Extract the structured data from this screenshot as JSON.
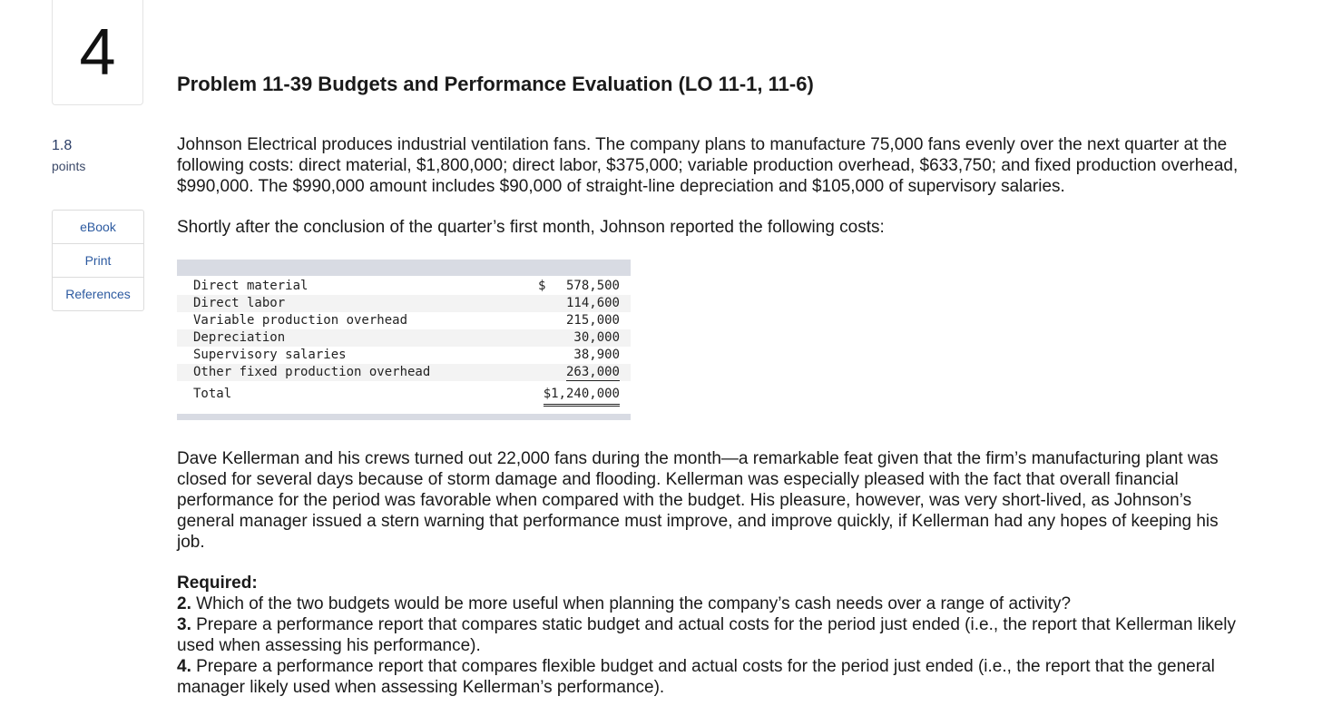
{
  "question": {
    "number": "4",
    "points_value": "1.8",
    "points_label": "points"
  },
  "sidebar": {
    "links": [
      "eBook",
      "Print",
      "References"
    ]
  },
  "problem": {
    "title": "Problem 11-39 Budgets and Performance Evaluation (LO 11-1, 11-6)",
    "para1": "Johnson Electrical produces industrial ventilation fans. The company plans to manufacture 75,000 fans evenly over the next quarter at the following costs: direct material, $1,800,000; direct labor, $375,000; variable production overhead, $633,750; and fixed production overhead, $990,000. The $990,000 amount includes $90,000 of straight-line depreciation and $105,000 of supervisory salaries.",
    "para2": "Shortly after the conclusion of the quarter’s first month, Johnson reported the following costs:",
    "para3": "Dave Kellerman and his crews turned out 22,000 fans during the month—a remarkable feat given that the firm’s manufacturing plant was closed for several days because of storm damage and flooding. Kellerman was especially pleased with the fact that overall financial performance for the period was favorable when compared with the budget. His pleasure, however, was very short-lived, as Johnson’s general manager issued a stern warning that performance must improve, and improve quickly, if Kellerman had any hopes of keeping his job."
  },
  "costs": {
    "currency": "$",
    "rows": [
      {
        "label": "Direct material",
        "value": "578,500"
      },
      {
        "label": "Direct labor",
        "value": "114,600"
      },
      {
        "label": "Variable production overhead",
        "value": "215,000"
      },
      {
        "label": "Depreciation",
        "value": "30,000"
      },
      {
        "label": "Supervisory salaries",
        "value": "38,900"
      },
      {
        "label": "Other fixed production overhead",
        "value": "263,000"
      }
    ],
    "total_label": "Total",
    "total_value": "$1,240,000"
  },
  "required": {
    "heading": "Required:",
    "items": [
      {
        "num": "2.",
        "text": " Which of the two budgets would be more useful when planning the company’s cash needs over a range of activity?"
      },
      {
        "num": "3.",
        "text": " Prepare a performance report that compares static budget and actual costs for the period just ended (i.e., the report that Kellerman likely used when assessing his performance)."
      },
      {
        "num": "4.",
        "text": " Prepare a performance report that compares flexible budget and actual costs for the period just ended (i.e., the report that the general manager likely used when assessing Kellerman’s performance)."
      }
    ]
  }
}
